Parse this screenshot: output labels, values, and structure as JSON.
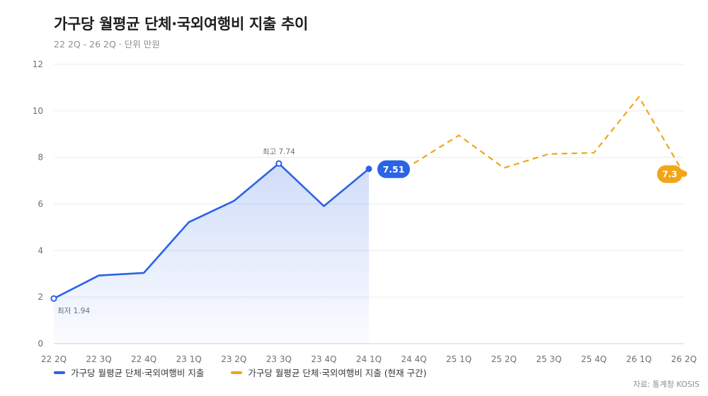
{
  "title": "가구당 월평균 단체·국외여행비 지출 추이",
  "subtitle": "22 2Q - 26 2Q · 단위 만원",
  "source": "자료: 통계청 KOSIS",
  "colors": {
    "actual": "#2b63e6",
    "current": "#f2a516",
    "grid": "#e9ebee",
    "axis": "#6b7176"
  },
  "chart_data": {
    "type": "line",
    "categories": [
      "22 2Q",
      "22 3Q",
      "22 4Q",
      "23 1Q",
      "23 2Q",
      "23 3Q",
      "23 4Q",
      "24 1Q",
      "24 4Q",
      "25 1Q",
      "25 2Q",
      "25 3Q",
      "25 4Q",
      "26 1Q",
      "26 2Q"
    ],
    "series": [
      {
        "name": "가구당 월평균 단체·국외여행비 지출",
        "style": "solid",
        "area": true,
        "values": [
          1.94,
          2.93,
          3.04,
          5.22,
          6.13,
          7.74,
          5.91,
          7.51,
          null,
          null,
          null,
          null,
          null,
          null,
          null
        ]
      },
      {
        "name": "가구당 월평균 단체·국외여행비 지출 (현재 구간)",
        "style": "dashed",
        "values": [
          null,
          null,
          null,
          null,
          null,
          null,
          null,
          null,
          7.75,
          8.95,
          7.55,
          8.15,
          8.2,
          10.6,
          7.3
        ]
      }
    ],
    "ylim": [
      0,
      12
    ],
    "yticks": [
      0,
      2,
      4,
      6,
      8,
      10,
      12
    ],
    "grid": true,
    "legend": "bottom-left",
    "annotations": {
      "min_label": "최저 1.94",
      "max_label": "최고 7.74",
      "last_actual_label": "7.51",
      "last_current_label": "7.3"
    }
  }
}
